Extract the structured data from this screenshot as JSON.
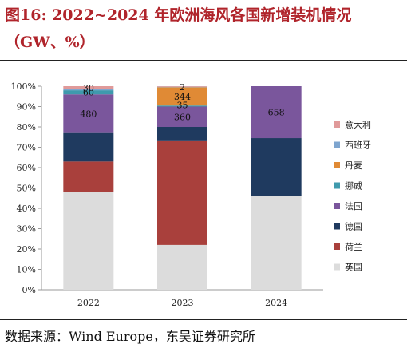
{
  "title": {
    "line1": "图16:  2022~2024  年欧洲海风各国新增装机情况",
    "line2": "（GW、%）"
  },
  "source": "数据来源：Wind Europe，东吴证券研究所",
  "chart_data": {
    "type": "bar",
    "stacked": true,
    "percent": true,
    "categories": [
      "2022",
      "2023",
      "2024"
    ],
    "ylim": [
      0,
      100
    ],
    "yticks": [
      "0%",
      "10%",
      "20%",
      "30%",
      "40%",
      "50%",
      "60%",
      "70%",
      "80%",
      "90%",
      "100%"
    ],
    "legend_position": "right",
    "series": [
      {
        "name": "英国",
        "color": "#dcdcdc",
        "values": [
          48,
          22,
          46
        ],
        "labels": [
          "",
          "",
          ""
        ]
      },
      {
        "name": "荷兰",
        "color": "#a9403c",
        "values": [
          15,
          51,
          0
        ],
        "labels": [
          "",
          "",
          ""
        ]
      },
      {
        "name": "德国",
        "color": "#1f3a5f",
        "values": [
          14,
          7,
          28.5
        ],
        "labels": [
          "",
          "",
          ""
        ]
      },
      {
        "name": "法国",
        "color": "#7a569c",
        "values": [
          19,
          10,
          25.5
        ],
        "labels": [
          "480",
          "360",
          "658"
        ]
      },
      {
        "name": "挪威",
        "color": "#3f9aad",
        "values": [
          2,
          0.5,
          0
        ],
        "labels": [
          "60",
          "",
          ""
        ]
      },
      {
        "name": "丹麦",
        "color": "#e08a35",
        "values": [
          0,
          9,
          0
        ],
        "labels": [
          "",
          "344",
          ""
        ]
      },
      {
        "name": "西班牙",
        "color": "#7ea5cf",
        "values": [
          0.5,
          0.2,
          0
        ],
        "labels": [
          "",
          "",
          ""
        ]
      },
      {
        "name": "意大利",
        "color": "#e09a9a",
        "values": [
          1.5,
          0.3,
          0
        ],
        "labels": [
          "30",
          "",
          ""
        ]
      }
    ],
    "extra_labels": [
      {
        "category": "2023",
        "text": "2",
        "at": 99.6
      },
      {
        "category": "2023",
        "text": "35",
        "at": 90.8
      }
    ]
  }
}
